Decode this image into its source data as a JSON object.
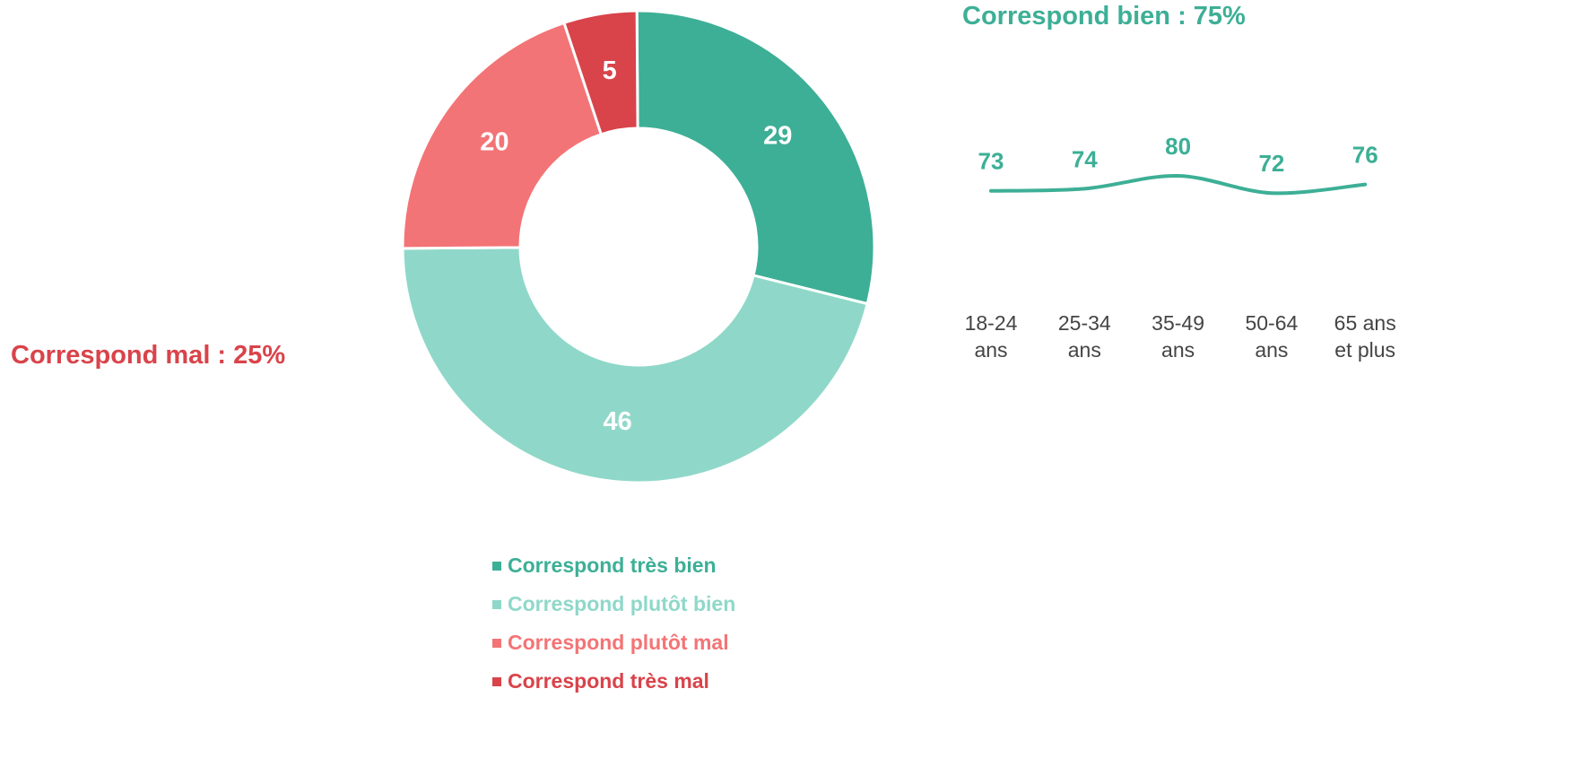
{
  "chart_data": [
    {
      "type": "donut",
      "categories": [
        "Correspond très bien",
        "Correspond plutôt bien",
        "Correspond plutôt mal",
        "Correspond très mal"
      ],
      "values": [
        29,
        46,
        20,
        5
      ],
      "colors": [
        "#3daf96",
        "#8fd8c9",
        "#f37476",
        "#d9434a"
      ],
      "legend": "bottom",
      "annotations": [
        {
          "text": "Correspond bien : 75%",
          "color": "#3daf96"
        },
        {
          "text": "Correspond mal : 25%",
          "color": "#d9434a"
        }
      ]
    },
    {
      "type": "line",
      "categories": [
        "18-24 ans",
        "25-34 ans",
        "35-49 ans",
        "50-64 ans",
        "65 ans et plus"
      ],
      "values": [
        73,
        74,
        80,
        72,
        76
      ],
      "color": "#3daf96",
      "smooth": true
    }
  ]
}
